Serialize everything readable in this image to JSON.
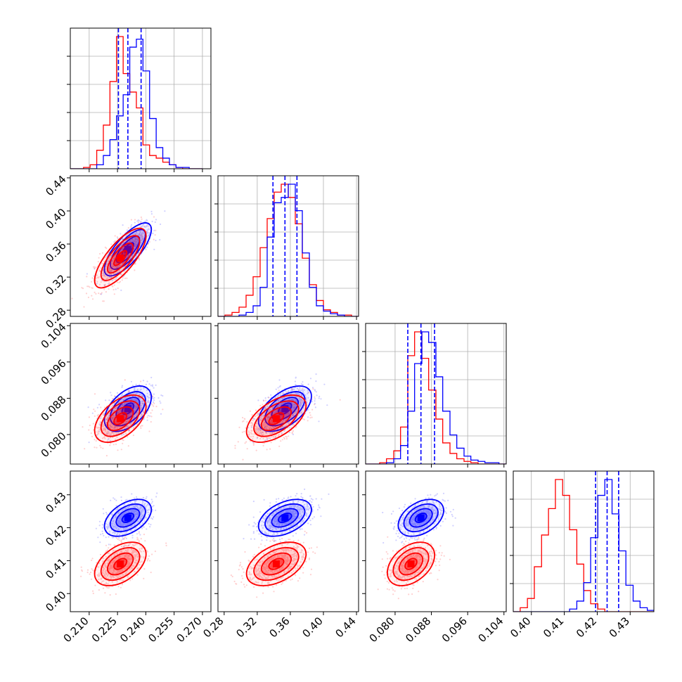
{
  "chart_data": {
    "type": "corner",
    "colors": {
      "sample_a": "#0000ff",
      "sample_b": "#ff0000",
      "grid": "#b0b0b0",
      "quantile_line": "#0000ff"
    },
    "parameters": [
      {
        "ticks": [
          "0.210",
          "0.225",
          "0.240",
          "0.255",
          "0.270"
        ],
        "tick_values": [
          0.21,
          0.225,
          0.24,
          0.255,
          0.27
        ],
        "range": [
          0.2,
          0.2745
        ]
      },
      {
        "ticks": [
          "0.28",
          "0.32",
          "0.36",
          "0.40",
          "0.44"
        ],
        "tick_values": [
          0.28,
          0.32,
          0.36,
          0.4,
          0.44
        ],
        "range": [
          0.2725,
          0.4425
        ]
      },
      {
        "ticks": [
          "0.080",
          "0.088",
          "0.096",
          "0.104"
        ],
        "tick_values": [
          0.08,
          0.088,
          0.096,
          0.104
        ],
        "range": [
          0.0735,
          0.1045
        ]
      },
      {
        "ticks": [
          "0.40",
          "0.41",
          "0.42",
          "0.43"
        ],
        "tick_values": [
          0.4,
          0.41,
          0.42,
          0.43
        ],
        "range": [
          0.3945,
          0.4372
        ]
      }
    ],
    "samples": [
      {
        "color": "blue",
        "mean": [
          0.2305,
          0.3535,
          0.0857,
          0.423
        ],
        "sd": [
          0.0062,
          0.016,
          0.0025,
          0.0028
        ],
        "corr": [
          [
            0,
            1,
            0.75
          ],
          [
            0,
            2,
            0.5
          ],
          [
            1,
            2,
            0.55
          ],
          [
            0,
            3,
            0.45
          ],
          [
            1,
            3,
            0.45
          ],
          [
            2,
            3,
            0.4
          ]
        ]
      },
      {
        "color": "red",
        "mean": [
          0.2265,
          0.343,
          0.0835,
          0.409
        ],
        "sd": [
          0.0068,
          0.018,
          0.0026,
          0.0033
        ],
        "corr": [
          [
            0,
            1,
            0.75
          ],
          [
            0,
            2,
            0.5
          ],
          [
            1,
            2,
            0.55
          ],
          [
            0,
            3,
            0.45
          ],
          [
            1,
            3,
            0.45
          ],
          [
            2,
            3,
            0.4
          ]
        ]
      }
    ],
    "quantiles": [
      [
        0.2255,
        0.2305,
        0.2375
      ],
      [
        0.339,
        0.3535,
        0.368
      ],
      [
        0.0828,
        0.0857,
        0.0887
      ],
      [
        0.4195,
        0.423,
        0.4265
      ]
    ],
    "diag_hist": [
      {
        "bins": [
          0.2,
          0.2035,
          0.207,
          0.2105,
          0.214,
          0.2175,
          0.221,
          0.2245,
          0.228,
          0.2315,
          0.235,
          0.2385,
          0.242,
          0.2455,
          0.249,
          0.2525,
          0.256,
          0.2595,
          0.263,
          0.2665,
          0.27
        ],
        "blue": [
          0,
          0,
          0,
          0,
          3,
          10,
          22,
          40,
          56,
          92,
          98,
          74,
          38,
          16,
          8,
          3,
          1,
          1,
          0,
          0
        ],
        "red": [
          0,
          0,
          1,
          3,
          14,
          33,
          66,
          100,
          72,
          58,
          46,
          18,
          10,
          8,
          5,
          3,
          1,
          0,
          0,
          0
        ]
      },
      {
        "bins": [
          0.2725,
          0.281,
          0.2895,
          0.298,
          0.3065,
          0.315,
          0.3235,
          0.332,
          0.3405,
          0.349,
          0.3575,
          0.366,
          0.3745,
          0.383,
          0.3915,
          0.4,
          0.4085,
          0.417,
          0.4255,
          0.434,
          0.4425
        ],
        "blue": [
          0,
          0,
          0,
          1,
          3,
          8,
          22,
          60,
          86,
          90,
          100,
          80,
          48,
          22,
          8,
          4,
          2,
          1,
          0,
          0
        ],
        "red": [
          0,
          1,
          3,
          7,
          16,
          30,
          52,
          74,
          94,
          100,
          90,
          70,
          44,
          24,
          12,
          5,
          3,
          1,
          1,
          0
        ]
      },
      {
        "bins": [
          0.0735,
          0.075,
          0.0766,
          0.0781,
          0.0797,
          0.0812,
          0.0828,
          0.0843,
          0.0859,
          0.0874,
          0.089,
          0.0905,
          0.0921,
          0.0936,
          0.0952,
          0.0967,
          0.0983,
          0.0998,
          0.1014,
          0.1029,
          0.1045
        ],
        "blue": [
          0,
          0,
          0,
          1,
          4,
          14,
          40,
          76,
          100,
          92,
          66,
          40,
          22,
          12,
          6,
          3,
          2,
          1,
          1,
          0
        ],
        "red": [
          0,
          0,
          1,
          4,
          10,
          28,
          82,
          100,
          80,
          56,
          34,
          16,
          8,
          4,
          2,
          1,
          0,
          0,
          0,
          0
        ]
      },
      {
        "bins": [
          0.3945,
          0.3966,
          0.3988,
          0.4009,
          0.4031,
          0.4052,
          0.4073,
          0.4095,
          0.4116,
          0.4138,
          0.4159,
          0.418,
          0.4202,
          0.4223,
          0.4245,
          0.4266,
          0.4287,
          0.4309,
          0.433,
          0.4352,
          0.4372
        ],
        "blue": [
          0,
          0,
          0,
          0,
          0,
          0,
          0,
          0,
          2,
          8,
          22,
          56,
          88,
          100,
          74,
          46,
          20,
          8,
          3,
          1
        ],
        "red": [
          0,
          3,
          10,
          34,
          58,
          78,
          100,
          88,
          62,
          36,
          16,
          6,
          2,
          0,
          0,
          0,
          0,
          0,
          0,
          0
        ]
      }
    ]
  }
}
